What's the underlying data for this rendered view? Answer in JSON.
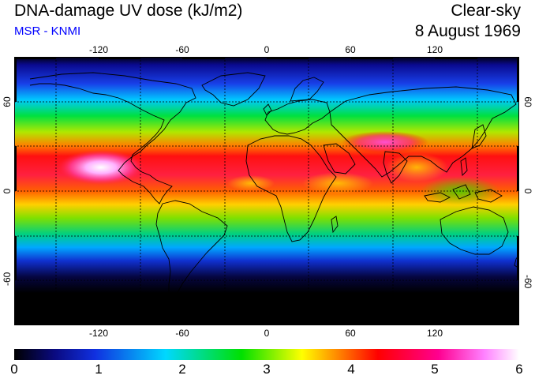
{
  "header": {
    "title": "DNA-damage UV dose (kJ/m2)",
    "subtitle": "MSR - KNMI",
    "mode": "Clear-sky",
    "date": "8 August 1969"
  },
  "map": {
    "projection": "equirectangular",
    "lon_ticks": [
      "-120",
      "-60",
      "0",
      "60",
      "120"
    ],
    "lat_ticks": [
      "60",
      "0",
      "-60"
    ],
    "grid": "dotted, every 30 degrees",
    "coastlines": "black"
  },
  "colorbar": {
    "labels": [
      "0",
      "1",
      "2",
      "3",
      "4",
      "5",
      "6"
    ],
    "colors": [
      "#000000",
      "#1010c8",
      "#00d8ff",
      "#00e000",
      "#ffff00",
      "#ff0000",
      "#ff00a0",
      "#ffffff"
    ]
  }
}
